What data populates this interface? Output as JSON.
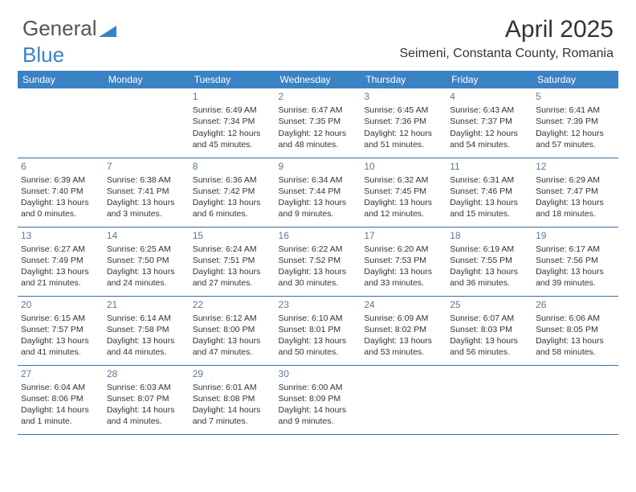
{
  "logo": {
    "part1": "General",
    "part2": "Blue"
  },
  "header": {
    "month_title": "April 2025",
    "location": "Seimeni, Constanta County, Romania"
  },
  "colors": {
    "header_bg": "#3b82c4",
    "header_text": "#ffffff",
    "border": "#3b6da0",
    "daynum": "#5a7a9a",
    "body_text": "#333333",
    "logo_gray": "#555555",
    "logo_blue": "#3b82c4"
  },
  "weekdays": [
    "Sunday",
    "Monday",
    "Tuesday",
    "Wednesday",
    "Thursday",
    "Friday",
    "Saturday"
  ],
  "weeks": [
    [
      null,
      null,
      {
        "n": "1",
        "sr": "6:49 AM",
        "ss": "7:34 PM",
        "dl": "12 hours and 45 minutes."
      },
      {
        "n": "2",
        "sr": "6:47 AM",
        "ss": "7:35 PM",
        "dl": "12 hours and 48 minutes."
      },
      {
        "n": "3",
        "sr": "6:45 AM",
        "ss": "7:36 PM",
        "dl": "12 hours and 51 minutes."
      },
      {
        "n": "4",
        "sr": "6:43 AM",
        "ss": "7:37 PM",
        "dl": "12 hours and 54 minutes."
      },
      {
        "n": "5",
        "sr": "6:41 AM",
        "ss": "7:39 PM",
        "dl": "12 hours and 57 minutes."
      }
    ],
    [
      {
        "n": "6",
        "sr": "6:39 AM",
        "ss": "7:40 PM",
        "dl": "13 hours and 0 minutes."
      },
      {
        "n": "7",
        "sr": "6:38 AM",
        "ss": "7:41 PM",
        "dl": "13 hours and 3 minutes."
      },
      {
        "n": "8",
        "sr": "6:36 AM",
        "ss": "7:42 PM",
        "dl": "13 hours and 6 minutes."
      },
      {
        "n": "9",
        "sr": "6:34 AM",
        "ss": "7:44 PM",
        "dl": "13 hours and 9 minutes."
      },
      {
        "n": "10",
        "sr": "6:32 AM",
        "ss": "7:45 PM",
        "dl": "13 hours and 12 minutes."
      },
      {
        "n": "11",
        "sr": "6:31 AM",
        "ss": "7:46 PM",
        "dl": "13 hours and 15 minutes."
      },
      {
        "n": "12",
        "sr": "6:29 AM",
        "ss": "7:47 PM",
        "dl": "13 hours and 18 minutes."
      }
    ],
    [
      {
        "n": "13",
        "sr": "6:27 AM",
        "ss": "7:49 PM",
        "dl": "13 hours and 21 minutes."
      },
      {
        "n": "14",
        "sr": "6:25 AM",
        "ss": "7:50 PM",
        "dl": "13 hours and 24 minutes."
      },
      {
        "n": "15",
        "sr": "6:24 AM",
        "ss": "7:51 PM",
        "dl": "13 hours and 27 minutes."
      },
      {
        "n": "16",
        "sr": "6:22 AM",
        "ss": "7:52 PM",
        "dl": "13 hours and 30 minutes."
      },
      {
        "n": "17",
        "sr": "6:20 AM",
        "ss": "7:53 PM",
        "dl": "13 hours and 33 minutes."
      },
      {
        "n": "18",
        "sr": "6:19 AM",
        "ss": "7:55 PM",
        "dl": "13 hours and 36 minutes."
      },
      {
        "n": "19",
        "sr": "6:17 AM",
        "ss": "7:56 PM",
        "dl": "13 hours and 39 minutes."
      }
    ],
    [
      {
        "n": "20",
        "sr": "6:15 AM",
        "ss": "7:57 PM",
        "dl": "13 hours and 41 minutes."
      },
      {
        "n": "21",
        "sr": "6:14 AM",
        "ss": "7:58 PM",
        "dl": "13 hours and 44 minutes."
      },
      {
        "n": "22",
        "sr": "6:12 AM",
        "ss": "8:00 PM",
        "dl": "13 hours and 47 minutes."
      },
      {
        "n": "23",
        "sr": "6:10 AM",
        "ss": "8:01 PM",
        "dl": "13 hours and 50 minutes."
      },
      {
        "n": "24",
        "sr": "6:09 AM",
        "ss": "8:02 PM",
        "dl": "13 hours and 53 minutes."
      },
      {
        "n": "25",
        "sr": "6:07 AM",
        "ss": "8:03 PM",
        "dl": "13 hours and 56 minutes."
      },
      {
        "n": "26",
        "sr": "6:06 AM",
        "ss": "8:05 PM",
        "dl": "13 hours and 58 minutes."
      }
    ],
    [
      {
        "n": "27",
        "sr": "6:04 AM",
        "ss": "8:06 PM",
        "dl": "14 hours and 1 minute."
      },
      {
        "n": "28",
        "sr": "6:03 AM",
        "ss": "8:07 PM",
        "dl": "14 hours and 4 minutes."
      },
      {
        "n": "29",
        "sr": "6:01 AM",
        "ss": "8:08 PM",
        "dl": "14 hours and 7 minutes."
      },
      {
        "n": "30",
        "sr": "6:00 AM",
        "ss": "8:09 PM",
        "dl": "14 hours and 9 minutes."
      },
      null,
      null,
      null
    ]
  ],
  "labels": {
    "sunrise": "Sunrise:",
    "sunset": "Sunset:",
    "daylight": "Daylight:"
  }
}
